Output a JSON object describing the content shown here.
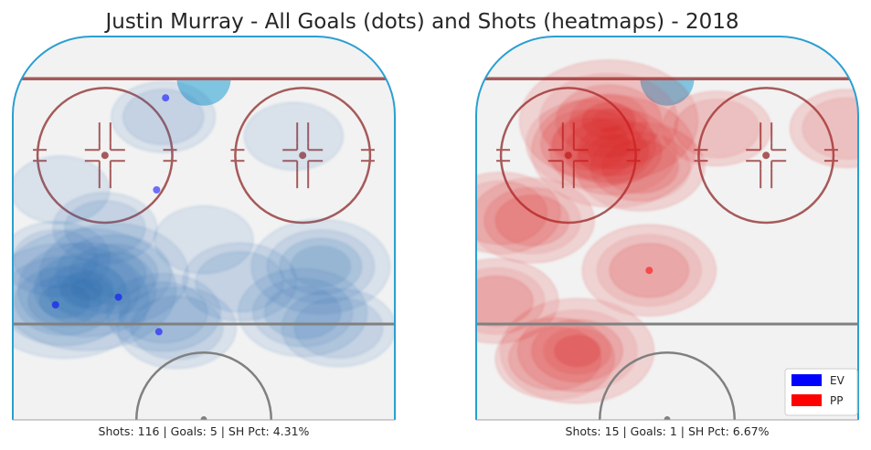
{
  "title": "Justin Murray - All Goals (dots) and Shots (heatmaps) - 2018",
  "colors": {
    "ev": "#0000ff",
    "pp": "#ff0000",
    "board": "#2a9fd0",
    "ice": "#f2f2f2",
    "goal_line": "#a65a5a",
    "circle": "#a65a5a",
    "blue_line": "#808080",
    "crease": "#7fc4e0",
    "ev_heat": "#2f6fb0",
    "pp_heat": "#d92020"
  },
  "legend": [
    {
      "label": "EV",
      "color": "#0000ff"
    },
    {
      "label": "PP",
      "color": "#ff0000"
    }
  ],
  "chart_data": [
    {
      "type": "scatter",
      "strength": "EV",
      "caption": "Shots: 116 | Goals: 5 | SH Pct: 4.31%",
      "shots": 116,
      "goals": 5,
      "sh_pct": "4.31%",
      "xlim": [
        -42.5,
        42.5
      ],
      "ylim": [
        100,
        0
      ],
      "goal_points": [
        {
          "x": -8.5,
          "y": 84
        },
        {
          "x": -10.5,
          "y": 60
        },
        {
          "x": -33,
          "y": 30
        },
        {
          "x": -19,
          "y": 32
        },
        {
          "x": -10,
          "y": 23
        }
      ],
      "shot_density": [
        {
          "x": -26,
          "y": 34,
          "w": 1.0
        },
        {
          "x": -31,
          "y": 31,
          "w": 0.9
        },
        {
          "x": -20,
          "y": 38,
          "w": 0.7
        },
        {
          "x": 26,
          "y": 40,
          "w": 0.6
        },
        {
          "x": 22,
          "y": 28,
          "w": 0.5
        },
        {
          "x": 8,
          "y": 36,
          "w": 0.35
        },
        {
          "x": -6,
          "y": 24,
          "w": 0.4
        },
        {
          "x": -9,
          "y": 28,
          "w": 0.35
        },
        {
          "x": 30,
          "y": 24,
          "w": 0.35
        },
        {
          "x": -33,
          "y": 42,
          "w": 0.3
        },
        {
          "x": -22,
          "y": 50,
          "w": 0.25
        },
        {
          "x": -9,
          "y": 79,
          "w": 0.25
        },
        {
          "x": 20,
          "y": 74,
          "w": 0.2
        },
        {
          "x": -32,
          "y": 60,
          "w": 0.2
        },
        {
          "x": 0,
          "y": 47,
          "w": 0.2
        }
      ]
    },
    {
      "type": "scatter",
      "strength": "PP",
      "caption": "Shots: 15 | Goals: 1 | SH Pct: 6.67%",
      "shots": 15,
      "goals": 1,
      "sh_pct": "6.67%",
      "xlim": [
        -42.5,
        42.5
      ],
      "ylim": [
        100,
        0
      ],
      "goal_points": [
        {
          "x": -4,
          "y": 39
        }
      ],
      "shot_density": [
        {
          "x": -13,
          "y": 78,
          "w": 1.0
        },
        {
          "x": -12,
          "y": 70,
          "w": 0.85
        },
        {
          "x": -6,
          "y": 66,
          "w": 0.5
        },
        {
          "x": -17,
          "y": 72,
          "w": 0.5
        },
        {
          "x": -20,
          "y": 18,
          "w": 0.75
        },
        {
          "x": -25,
          "y": 16,
          "w": 0.4
        },
        {
          "x": -4,
          "y": 39,
          "w": 0.55
        },
        {
          "x": -38,
          "y": 31,
          "w": 0.45
        },
        {
          "x": -30,
          "y": 52,
          "w": 0.45
        },
        {
          "x": -37,
          "y": 54,
          "w": 0.4
        },
        {
          "x": 40,
          "y": 76,
          "w": 0.35
        },
        {
          "x": 11,
          "y": 76,
          "w": 0.3
        }
      ]
    }
  ]
}
